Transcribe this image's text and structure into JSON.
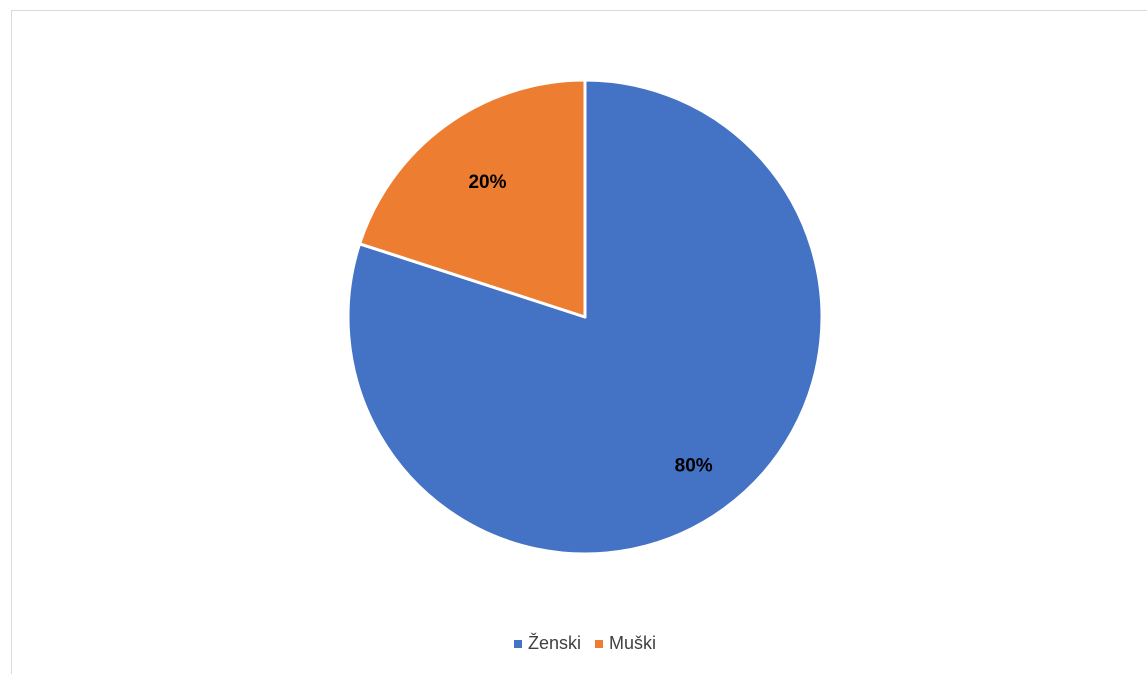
{
  "chart_data": {
    "type": "pie",
    "title": "",
    "categories": [
      "Ženski",
      "Muški"
    ],
    "values": [
      80,
      20
    ],
    "data_labels": [
      "80%",
      "20%"
    ],
    "colors": [
      "#4472c4",
      "#ed7d31"
    ],
    "start_angle_deg": 0,
    "direction": "clockwise",
    "legend_position": "bottom"
  }
}
